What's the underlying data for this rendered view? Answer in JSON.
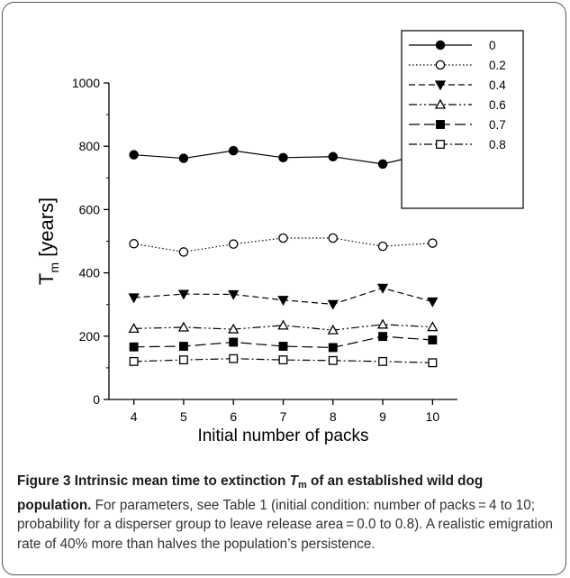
{
  "chart_data": {
    "type": "line",
    "x": [
      4,
      5,
      6,
      7,
      8,
      9,
      10
    ],
    "xlabel": "Initial number of packs",
    "ylabel_main": "T",
    "ylabel_sub": "m",
    "ylabel_rest": " [years]",
    "xlim": [
      3.5,
      10.5
    ],
    "ylim": [
      0,
      1000
    ],
    "xticks": [
      "4",
      "5",
      "6",
      "7",
      "8",
      "9",
      "10"
    ],
    "yticks": [
      "0",
      "200",
      "400",
      "600",
      "800",
      "1000"
    ],
    "grid": false,
    "legend_position": "top-right",
    "series": [
      {
        "name": "0",
        "values": [
          773,
          762,
          786,
          764,
          767,
          744,
          781
        ],
        "marker": "filled-circle",
        "dash": "solid"
      },
      {
        "name": "0.2",
        "values": [
          492,
          466,
          491,
          510,
          510,
          484,
          494
        ],
        "marker": "open-circle",
        "dash": "dotted"
      },
      {
        "name": "0.4",
        "values": [
          322,
          333,
          332,
          314,
          301,
          352,
          309
        ],
        "marker": "filled-triangle-down",
        "dash": "dashed"
      },
      {
        "name": "0.6",
        "values": [
          224,
          228,
          222,
          234,
          219,
          237,
          229
        ],
        "marker": "open-triangle-up",
        "dash": "dashdotdot"
      },
      {
        "name": "0.7",
        "values": [
          166,
          168,
          181,
          168,
          164,
          199,
          188
        ],
        "marker": "filled-square",
        "dash": "longdash"
      },
      {
        "name": "0.8",
        "values": [
          120,
          125,
          129,
          125,
          123,
          120,
          116
        ],
        "marker": "open-square",
        "dash": "dashdot"
      }
    ]
  },
  "caption": {
    "title_start": "Figure 3 Intrinsic mean time to extinction ",
    "title_T": "T",
    "title_sub": "m",
    "title_end": " of an established wild dog population.",
    "body": " For parameters, see Table 1 (initial condition: number of packs = 4 to 10; probability for a disperser group to leave release area = 0.0 to 0.8). A realistic emigration rate of 40% more than halves the population’s persistence."
  }
}
